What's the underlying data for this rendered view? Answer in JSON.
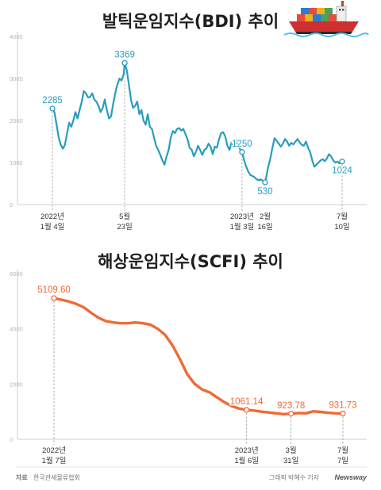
{
  "colors": {
    "bdi": "#2a9dbc",
    "scfi": "#ef6a35",
    "axis": "#cfcfcf",
    "dash": "#9a9a9a"
  },
  "ship_icon": "container-ship-icon",
  "chart_data": [
    {
      "type": "line",
      "title": "발틱운임지수(BDI) 추이",
      "ylim": [
        0,
        4000
      ],
      "yticks": [
        "0",
        "1000",
        "2000",
        "3000",
        "4000"
      ],
      "grid": false,
      "xtick_labels": [
        {
          "t": 0,
          "l1": "2022년",
          "l2": "1월 4일"
        },
        {
          "t": 138,
          "l1": "5월",
          "l2": "23일"
        },
        {
          "t": 362,
          "l1": "2023년",
          "l2": "1월 3일"
        },
        {
          "t": 406,
          "l1": "2월",
          "l2": "16일"
        },
        {
          "t": 553,
          "l1": "7월",
          "l2": "10일"
        }
      ],
      "series": [
        {
          "values": [
            [
              0,
              2285
            ],
            [
              4,
              2200
            ],
            [
              8,
              1900
            ],
            [
              12,
              1600
            ],
            [
              16,
              1420
            ],
            [
              20,
              1330
            ],
            [
              24,
              1420
            ],
            [
              28,
              1700
            ],
            [
              32,
              1950
            ],
            [
              36,
              1850
            ],
            [
              40,
              2000
            ],
            [
              44,
              2200
            ],
            [
              48,
              2050
            ],
            [
              52,
              2250
            ],
            [
              56,
              2450
            ],
            [
              60,
              2700
            ],
            [
              64,
              2650
            ],
            [
              68,
              2550
            ],
            [
              72,
              2560
            ],
            [
              76,
              2650
            ],
            [
              80,
              2500
            ],
            [
              84,
              2450
            ],
            [
              88,
              2350
            ],
            [
              92,
              2200
            ],
            [
              96,
              2300
            ],
            [
              100,
              2500
            ],
            [
              104,
              2250
            ],
            [
              108,
              2050
            ],
            [
              112,
              2100
            ],
            [
              116,
              2400
            ],
            [
              120,
              2650
            ],
            [
              124,
              2850
            ],
            [
              128,
              3000
            ],
            [
              132,
              2950
            ],
            [
              136,
              3100
            ],
            [
              138,
              3369
            ],
            [
              142,
              3200
            ],
            [
              146,
              2850
            ],
            [
              150,
              2500
            ],
            [
              154,
              2300
            ],
            [
              158,
              2350
            ],
            [
              162,
              2450
            ],
            [
              166,
              2150
            ],
            [
              170,
              2250
            ],
            [
              174,
              2000
            ],
            [
              178,
              1900
            ],
            [
              182,
              2150
            ],
            [
              186,
              1850
            ],
            [
              190,
              1800
            ],
            [
              194,
              1600
            ],
            [
              198,
              1400
            ],
            [
              202,
              1300
            ],
            [
              206,
              1180
            ],
            [
              210,
              1050
            ],
            [
              214,
              950
            ],
            [
              218,
              1150
            ],
            [
              222,
              1300
            ],
            [
              226,
              1600
            ],
            [
              230,
              1750
            ],
            [
              234,
              1700
            ],
            [
              238,
              1800
            ],
            [
              242,
              1820
            ],
            [
              246,
              1760
            ],
            [
              250,
              1800
            ],
            [
              254,
              1680
            ],
            [
              258,
              1550
            ],
            [
              262,
              1350
            ],
            [
              266,
              1300
            ],
            [
              270,
              1150
            ],
            [
              274,
              1250
            ],
            [
              278,
              1400
            ],
            [
              282,
              1300
            ],
            [
              286,
              1180
            ],
            [
              290,
              1300
            ],
            [
              294,
              1340
            ],
            [
              298,
              1450
            ],
            [
              302,
              1380
            ],
            [
              306,
              1200
            ],
            [
              310,
              1380
            ],
            [
              314,
              1350
            ],
            [
              318,
              1550
            ],
            [
              322,
              1700
            ],
            [
              326,
              1720
            ],
            [
              330,
              1620
            ],
            [
              334,
              1400
            ],
            [
              338,
              1300
            ],
            [
              342,
              1480
            ],
            [
              346,
              1380
            ],
            [
              350,
              1550
            ],
            [
              354,
              1420
            ],
            [
              358,
              1320
            ],
            [
              362,
              1250
            ],
            [
              366,
              1050
            ],
            [
              370,
              900
            ],
            [
              374,
              780
            ],
            [
              378,
              700
            ],
            [
              382,
              680
            ],
            [
              386,
              650
            ],
            [
              390,
              600
            ],
            [
              394,
              580
            ],
            [
              398,
              600
            ],
            [
              402,
              560
            ],
            [
              406,
              530
            ],
            [
              408,
              640
            ],
            [
              412,
              900
            ],
            [
              416,
              1100
            ],
            [
              420,
              1350
            ],
            [
              424,
              1580
            ],
            [
              428,
              1520
            ],
            [
              432,
              1450
            ],
            [
              436,
              1380
            ],
            [
              440,
              1450
            ],
            [
              444,
              1560
            ],
            [
              448,
              1500
            ],
            [
              452,
              1400
            ],
            [
              456,
              1470
            ],
            [
              460,
              1430
            ],
            [
              464,
              1500
            ],
            [
              468,
              1560
            ],
            [
              472,
              1480
            ],
            [
              476,
              1420
            ],
            [
              480,
              1400
            ],
            [
              484,
              1500
            ],
            [
              488,
              1350
            ],
            [
              492,
              1250
            ],
            [
              496,
              1050
            ],
            [
              500,
              900
            ],
            [
              504,
              950
            ],
            [
              508,
              1000
            ],
            [
              512,
              1050
            ],
            [
              516,
              1080
            ],
            [
              520,
              1030
            ],
            [
              524,
              1100
            ],
            [
              528,
              1200
            ],
            [
              532,
              1150
            ],
            [
              536,
              1050
            ],
            [
              540,
              1000
            ],
            [
              544,
              1020
            ],
            [
              548,
              980
            ],
            [
              553,
              1024
            ]
          ]
        }
      ],
      "annotations": [
        {
          "t": 0,
          "v": 2285,
          "text": "2285",
          "pos": "above",
          "dash": true
        },
        {
          "t": 138,
          "v": 3369,
          "text": "3369",
          "pos": "above",
          "dash": true
        },
        {
          "t": 362,
          "v": 1250,
          "text": "1250",
          "pos": "above",
          "dash": true
        },
        {
          "t": 406,
          "v": 530,
          "text": "530",
          "pos": "below",
          "dash": false
        },
        {
          "t": 553,
          "v": 1024,
          "text": "1024",
          "pos": "below",
          "dash": true
        }
      ]
    },
    {
      "type": "line",
      "title": "해상운임지수(SCFI) 추이",
      "ylim": [
        0,
        6000
      ],
      "yticks": [
        "0",
        "2000",
        "4000",
        "6000"
      ],
      "grid": false,
      "xtick_labels": [
        {
          "t": 0,
          "l1": "2022년",
          "l2": "1월 7일"
        },
        {
          "t": 52,
          "l1": "2023년",
          "l2": "1월 6일"
        },
        {
          "t": 64,
          "l1": "3월",
          "l2": "31일"
        },
        {
          "t": 78,
          "l1": "7월",
          "l2": "7일"
        }
      ],
      "series": [
        {
          "values": [
            [
              0,
              5109.6
            ],
            [
              2,
              5050
            ],
            [
              4,
              4990
            ],
            [
              6,
              4900
            ],
            [
              8,
              4780
            ],
            [
              10,
              4580
            ],
            [
              12,
              4400
            ],
            [
              14,
              4280
            ],
            [
              16,
              4230
            ],
            [
              18,
              4200
            ],
            [
              20,
              4200
            ],
            [
              22,
              4230
            ],
            [
              24,
              4200
            ],
            [
              26,
              4150
            ],
            [
              28,
              4000
            ],
            [
              30,
              3780
            ],
            [
              32,
              3400
            ],
            [
              34,
              2900
            ],
            [
              36,
              2350
            ],
            [
              38,
              2000
            ],
            [
              40,
              1800
            ],
            [
              42,
              1700
            ],
            [
              44,
              1520
            ],
            [
              46,
              1340
            ],
            [
              48,
              1200
            ],
            [
              50,
              1110
            ],
            [
              52,
              1061.14
            ],
            [
              54,
              1040
            ],
            [
              56,
              1000
            ],
            [
              58,
              970
            ],
            [
              60,
              940
            ],
            [
              62,
              910
            ],
            [
              64,
              923.78
            ],
            [
              66,
              950
            ],
            [
              68,
              940
            ],
            [
              70,
              1010
            ],
            [
              72,
              990
            ],
            [
              74,
              960
            ],
            [
              76,
              940
            ],
            [
              78,
              931.73
            ]
          ]
        }
      ],
      "annotations": [
        {
          "t": 0,
          "v": 5109.6,
          "text": "5109.60",
          "pos": "above",
          "dash": true
        },
        {
          "t": 52,
          "v": 1061.14,
          "text": "1061.14",
          "pos": "above",
          "dash": true
        },
        {
          "t": 64,
          "v": 923.78,
          "text": "923.78",
          "pos": "above",
          "dash": true
        },
        {
          "t": 78,
          "v": 931.73,
          "text": "931.73",
          "pos": "above",
          "dash": true
        }
      ]
    }
  ],
  "footer": {
    "source_label": "자료",
    "source": "한국관세물류협회",
    "credit": "그래픽 박혜수 기자",
    "brand": "Newsway"
  }
}
